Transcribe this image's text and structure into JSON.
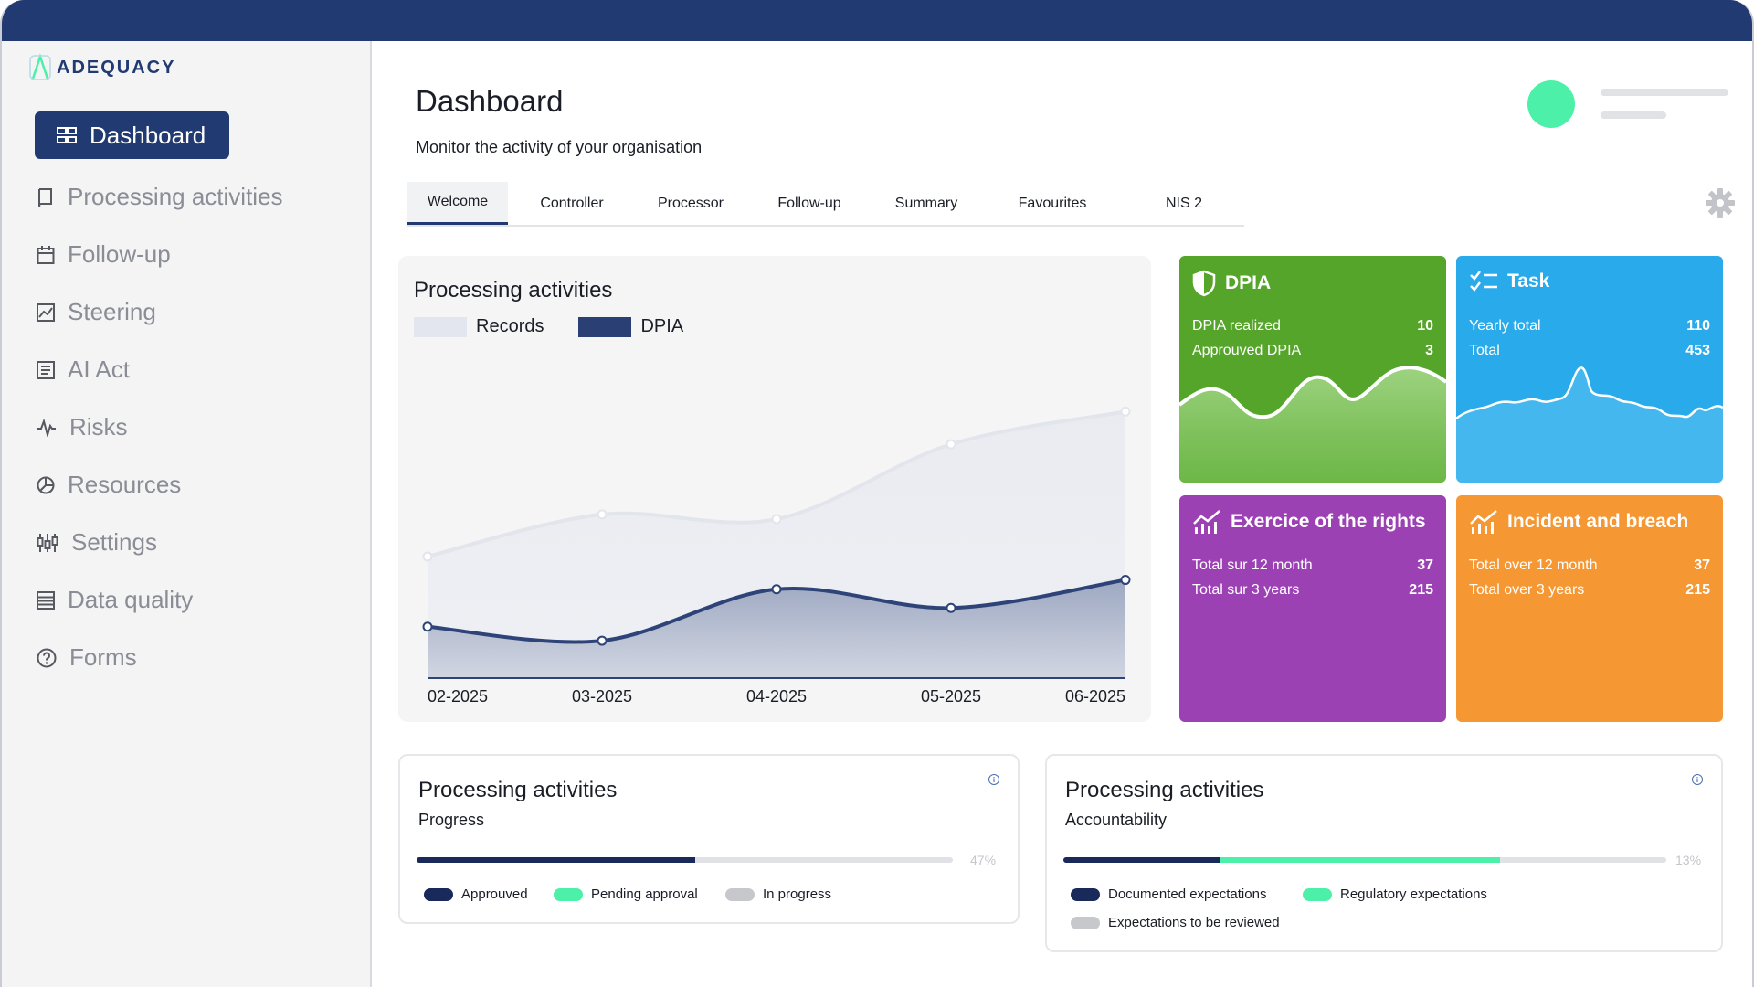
{
  "app": {
    "logo_text": "ADEQUACY"
  },
  "sidebar": {
    "active": {
      "label": "Dashboard",
      "icon": "dashboard-icon"
    },
    "items": [
      {
        "label": "Processing activities",
        "icon": "book-icon"
      },
      {
        "label": "Follow-up",
        "icon": "calendar-icon"
      },
      {
        "label": "Steering",
        "icon": "chart-icon"
      },
      {
        "label": "AI Act",
        "icon": "document-icon"
      },
      {
        "label": "Risks",
        "icon": "pulse-icon"
      },
      {
        "label": "Resources",
        "icon": "pie-icon"
      },
      {
        "label": "Settings",
        "icon": "sliders-icon"
      },
      {
        "label": "Data quality",
        "icon": "list-icon"
      },
      {
        "label": "Forms",
        "icon": "help-icon"
      }
    ]
  },
  "header": {
    "title": "Dashboard",
    "subtitle": "Monitor the activity of your organisation"
  },
  "tabs": [
    "Welcome",
    "Controller",
    "Processor",
    "Follow-up",
    "Summary",
    "Favourites",
    "NIS 2"
  ],
  "chart_data": {
    "type": "area",
    "title": "Processing activities",
    "categories": [
      "02-2025",
      "03-2025",
      "04-2025",
      "05-2025",
      "06-2025"
    ],
    "series": [
      {
        "name": "Records",
        "color": "#e3e6ee",
        "values": [
          26,
          35,
          34,
          50,
          57
        ]
      },
      {
        "name": "DPIA",
        "color": "#2a3f73",
        "values": [
          11,
          8,
          19,
          15,
          21
        ]
      }
    ],
    "ylim": [
      0,
      60
    ],
    "grid": false,
    "legend": "top-left"
  },
  "tiles": {
    "dpia": {
      "title": "DPIA",
      "color": "#56a52b",
      "icon": "shield-icon",
      "rows": [
        {
          "label": "DPIA realized",
          "value": "10"
        },
        {
          "label": "Approuved DPIA",
          "value": "3"
        }
      ]
    },
    "task": {
      "title": "Task",
      "color": "#29aaea",
      "icon": "checklist-icon",
      "rows": [
        {
          "label": "Yearly total",
          "value": "110"
        },
        {
          "label": "Total",
          "value": "453"
        }
      ]
    },
    "rights": {
      "title": "Exercice of the rights",
      "color": "#9c41b3",
      "icon": "bar-chart-icon",
      "rows": [
        {
          "label": "Total sur 12 month",
          "value": "37"
        },
        {
          "label": "Total sur 3 years",
          "value": "215"
        }
      ]
    },
    "incident": {
      "title": "Incident and breach",
      "color": "#f59733",
      "icon": "bar-chart-icon",
      "rows": [
        {
          "label": "Total over 12 month",
          "value": "37"
        },
        {
          "label": "Total over 3 years",
          "value": "215"
        }
      ]
    }
  },
  "progress": {
    "title": "Processing activities",
    "subtitle": "Progress",
    "percent_label": "47%",
    "segments": [
      {
        "label": "Approuved",
        "color": "#18295a",
        "fraction": 0.52
      },
      {
        "label": "Pending approval",
        "color": "#4df0a9",
        "fraction": 0
      },
      {
        "label": "In progress",
        "color": "#c7c8cc",
        "fraction": 0
      }
    ]
  },
  "accountability": {
    "title": "Processing activities",
    "subtitle": "Accountability",
    "percent_label": "13%",
    "segments": [
      {
        "label": "Documented expectations",
        "color": "#18295a",
        "fraction": 0.26
      },
      {
        "label": "Regulatory expectations",
        "color": "#4df0a9",
        "fraction": 0.465
      },
      {
        "label": "Expectations to be reviewed",
        "color": "#c7c8cc",
        "fraction": 0
      }
    ]
  }
}
